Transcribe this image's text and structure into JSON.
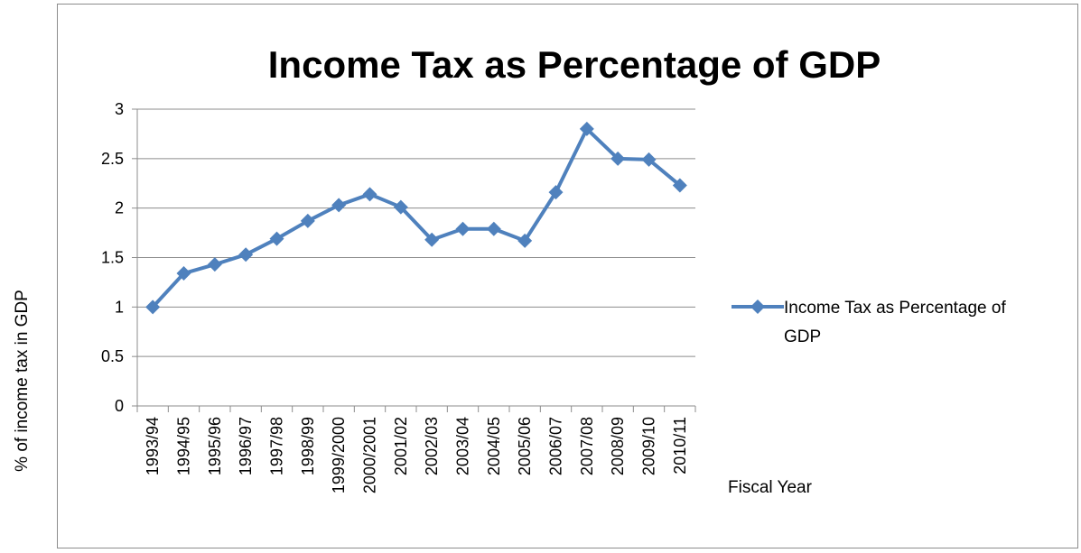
{
  "chart_data": {
    "type": "line",
    "title": "Income Tax as Percentage of GDP",
    "xlabel": "Fiscal Year",
    "ylabel": "% of income tax in GDP",
    "categories": [
      "1993/94",
      "1994/95",
      "1995/96",
      "1996/97",
      "1997/98",
      "1998/99",
      "1999/2000",
      "2000/2001",
      "2001/02",
      "2002/03",
      "2003/04",
      "2004/05",
      "2005/06",
      "2006/07",
      "2007/08",
      "2008/09",
      "2009/10",
      "2010/11"
    ],
    "series": [
      {
        "name": "Income Tax as Percentage of GDP",
        "legend_lines": [
          "Income Tax as Percentage of",
          "GDP"
        ],
        "color": "#4f81bd",
        "values": [
          1.0,
          1.34,
          1.43,
          1.53,
          1.69,
          1.87,
          2.03,
          2.14,
          2.01,
          1.68,
          1.79,
          1.79,
          1.67,
          2.16,
          2.8,
          2.5,
          2.49,
          2.23
        ]
      }
    ],
    "ylim": [
      0,
      3
    ],
    "yticks": [
      "0",
      "0.5",
      "1",
      "1.5",
      "2",
      "2.5",
      "3"
    ],
    "grid": true,
    "legend_position": "right"
  }
}
